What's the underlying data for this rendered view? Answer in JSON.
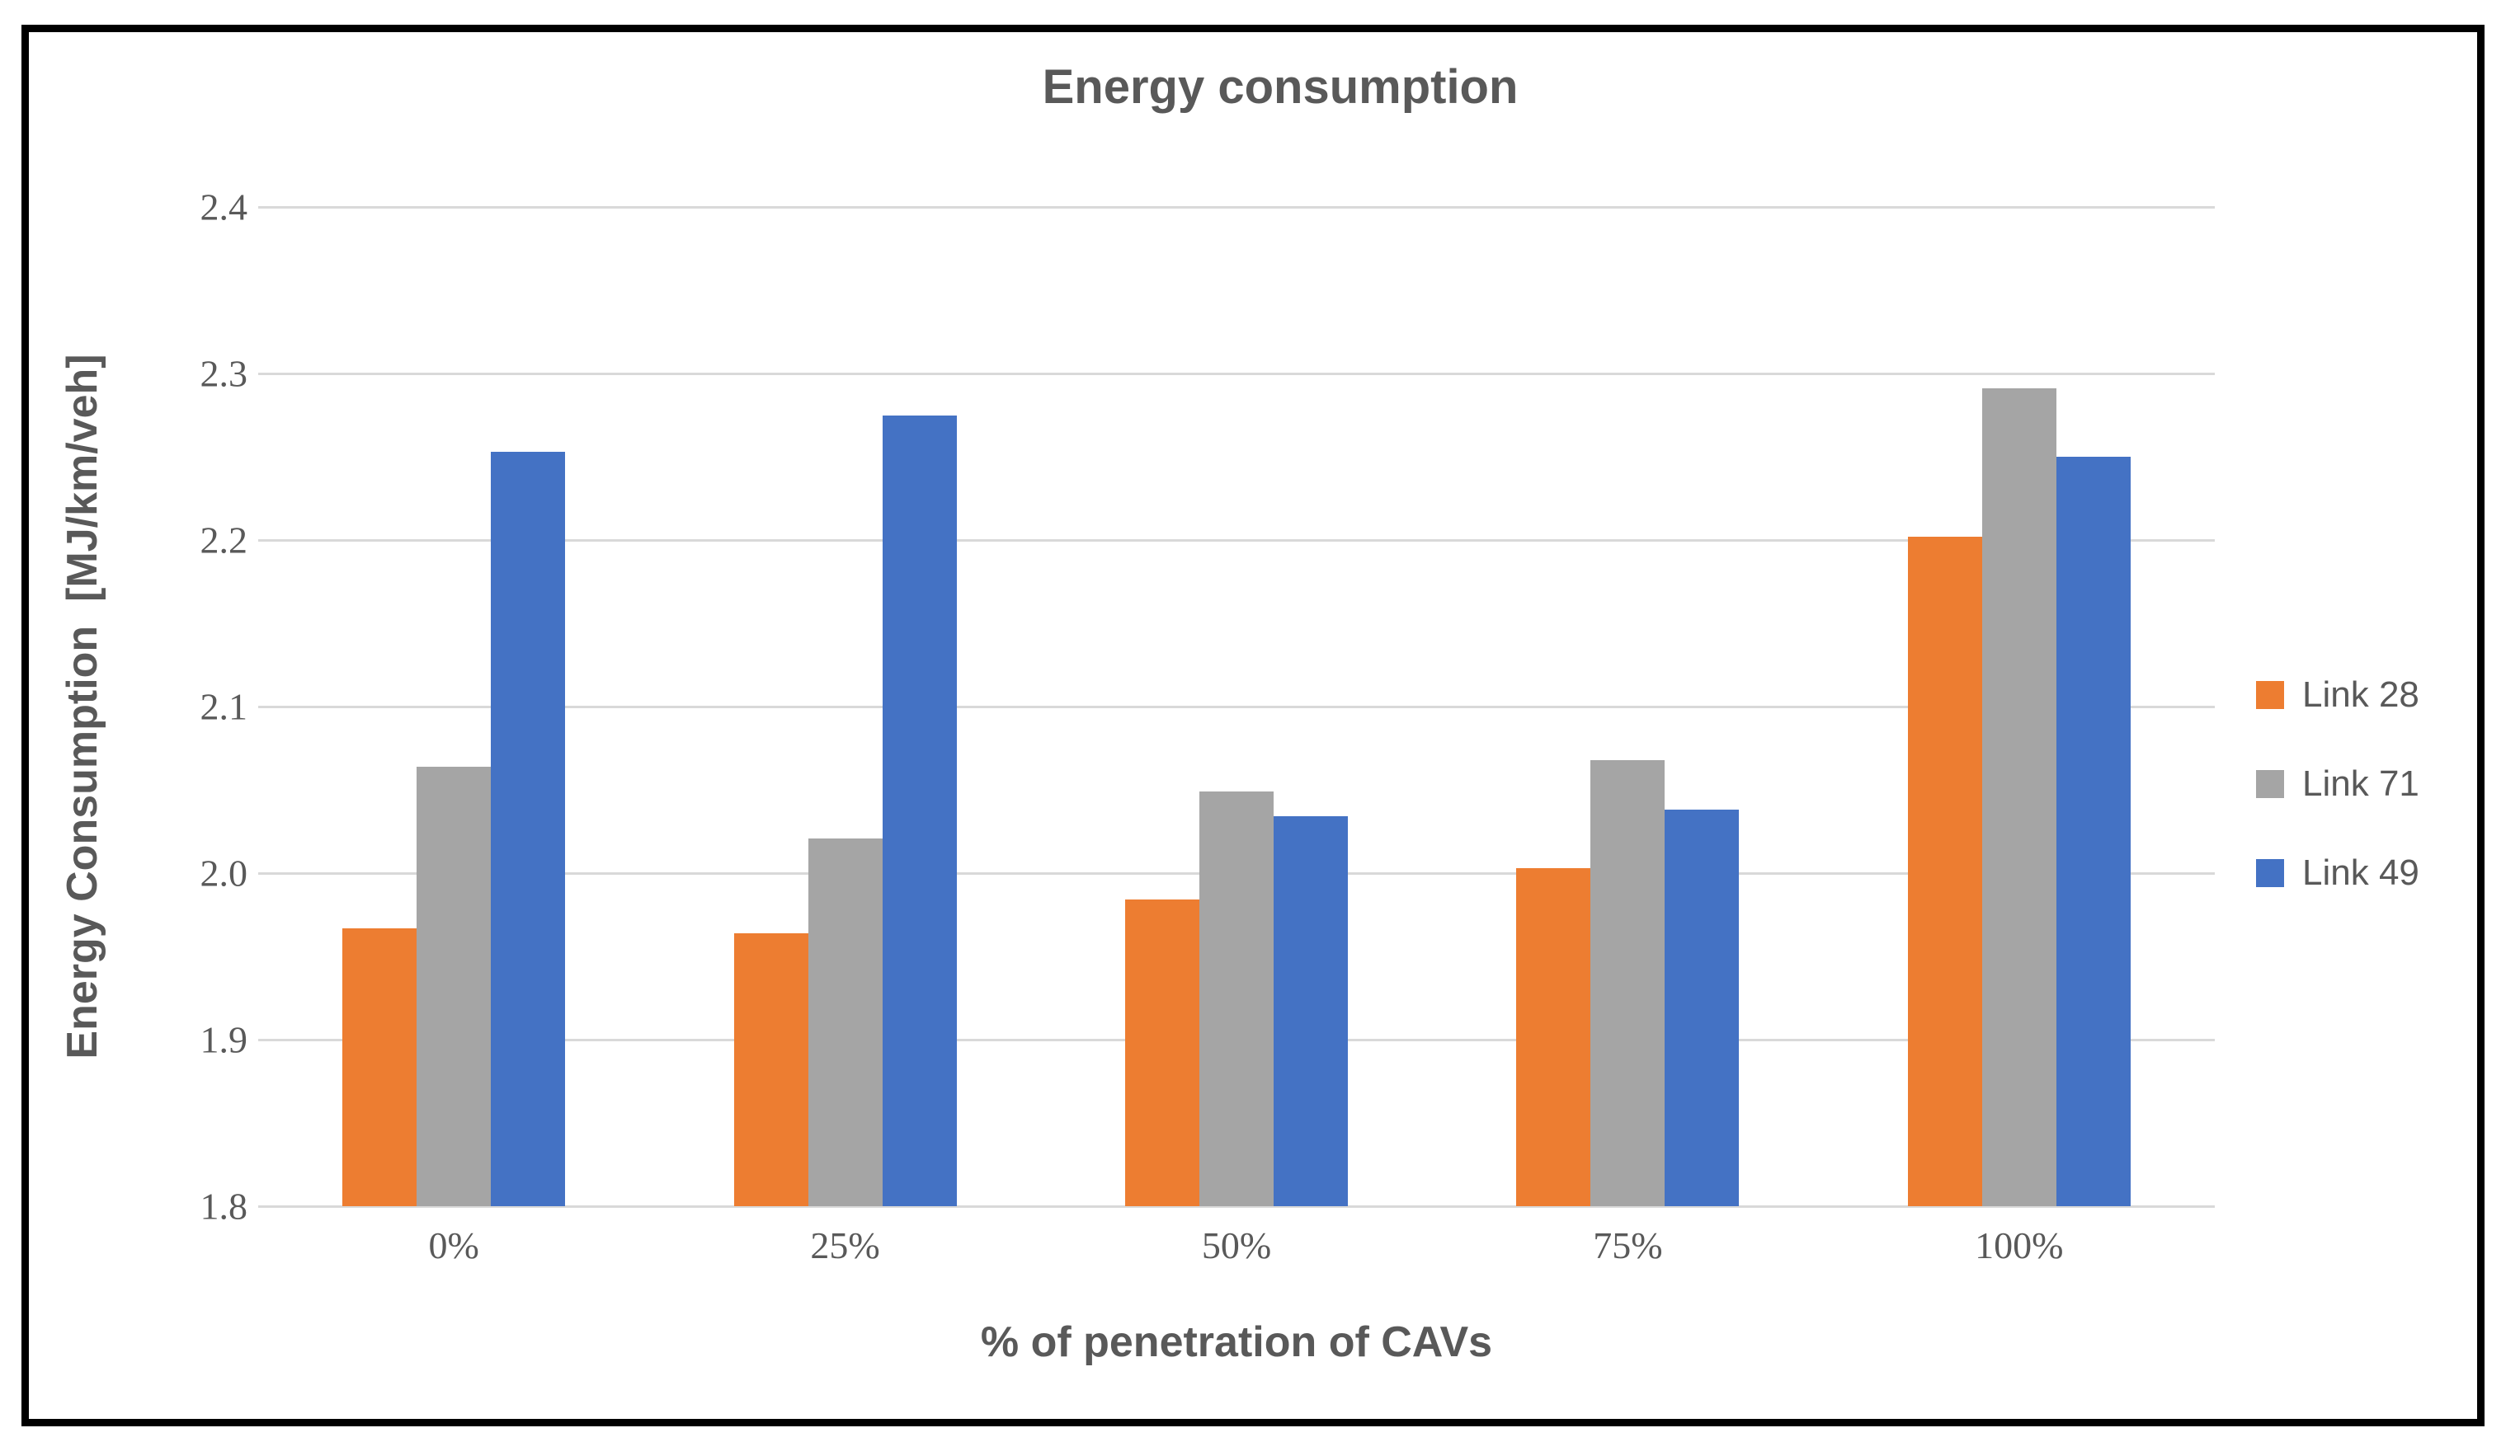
{
  "frame": {
    "border_color": "#000000",
    "background": "#FFFFFF"
  },
  "chart_data": {
    "type": "bar",
    "title": "Energy consumption",
    "xlabel": "% of penetration of CAVs",
    "ylabel": "Energy Consumption  [MJ/km/veh]",
    "categories": [
      "0%",
      "25%",
      "50%",
      "75%",
      "100%"
    ],
    "series": [
      {
        "name": "Link 28",
        "color": "#ED7D31",
        "values": [
          1.967,
          1.964,
          1.984,
          2.003,
          2.202
        ]
      },
      {
        "name": "Link 71",
        "color": "#A5A5A5",
        "values": [
          2.064,
          2.021,
          2.049,
          2.068,
          2.291
        ]
      },
      {
        "name": "Link 49",
        "color": "#4472C4",
        "values": [
          2.253,
          2.275,
          2.034,
          2.038,
          2.25
        ]
      }
    ],
    "ylim": [
      1.8,
      2.4
    ],
    "yticks": [
      2.4,
      2.3,
      2.2,
      2.1,
      2.0,
      1.9,
      1.8
    ],
    "ytick_labels": [
      "2.4",
      "2.3",
      "2.2",
      "2.1",
      "2.0",
      "1.9",
      "1.8"
    ],
    "grid": true,
    "legend_position": "right",
    "colors": {
      "text": "#595959",
      "gridline": "#D9D9D9"
    }
  }
}
